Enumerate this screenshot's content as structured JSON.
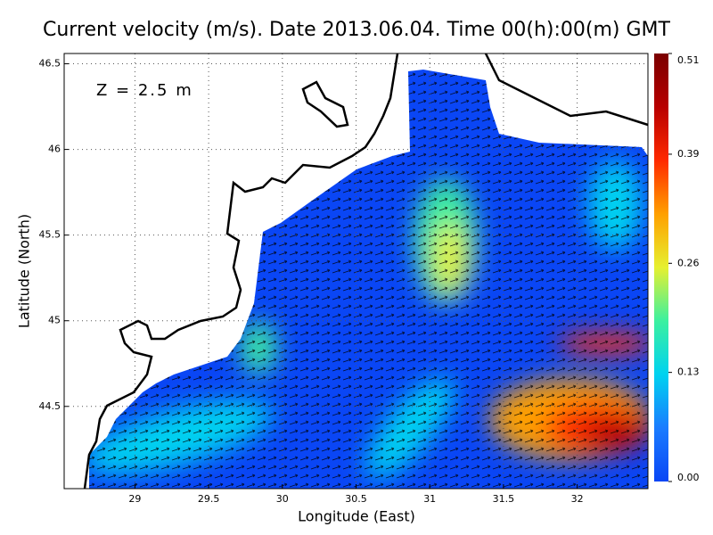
{
  "map": {
    "type": "heatmap",
    "title": "Current velocity (m/s). Date 2013.06.04. Time 00(h):00(m) GMT",
    "annotation": "Z = 2.5 m",
    "x_label": "Longitude (East)",
    "y_label": "Latitude (North)",
    "xlim": [
      28.52,
      32.48
    ],
    "ylim": [
      44.02,
      46.56
    ],
    "xticks": [
      29,
      29.5,
      30,
      30.5,
      31,
      31.5,
      32
    ],
    "yticks": [
      44.5,
      45,
      45.5,
      46,
      46.5
    ],
    "grid": true,
    "colorbar": {
      "lim": [
        0,
        0.51
      ],
      "ticks": [
        {
          "value": 0,
          "label": "0.00"
        },
        {
          "value": 0.13,
          "label": "0.13"
        },
        {
          "value": 0.26,
          "label": "0.26"
        },
        {
          "value": 0.39,
          "label": "0.39"
        },
        {
          "value": 0.51,
          "label": "0.51"
        }
      ],
      "colors": [
        "#0a46f5",
        "#1a7cff",
        "#00d2f0",
        "#3cf0a0",
        "#e6f030",
        "#ffa000",
        "#ff2a00",
        "#b80000",
        "#7a0000"
      ]
    }
  }
}
